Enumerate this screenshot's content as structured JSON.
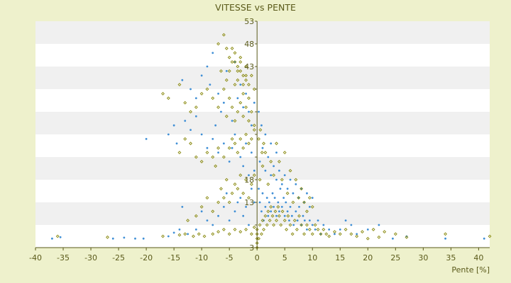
{
  "chart_data": {
    "type": "scatter",
    "title": "VITESSE vs PENTE",
    "xlabel": "Pente [%]",
    "ylabel": "",
    "xlim": [
      -40,
      42
    ],
    "ylim": [
      3,
      53
    ],
    "x_ticks": [
      -40,
      -35,
      -30,
      -25,
      -20,
      -15,
      -10,
      -5,
      0,
      5,
      10,
      15,
      20,
      25,
      30,
      35,
      40
    ],
    "y_ticks": [
      3,
      8,
      13,
      18,
      23,
      28,
      33,
      38,
      43,
      48,
      53
    ],
    "y_tick_labels_visible": [
      "53",
      "48",
      "43",
      "18",
      "13",
      "3"
    ],
    "grid": "horizontal bands",
    "legend": "none",
    "colors": {
      "background": "#eef1cc",
      "plot_band_light": "#ffffff",
      "plot_band_dark": "#f0f0f0",
      "axis": "#5a5a1a",
      "series_1": "#3f8fd6",
      "series_2": "#8a8a10"
    },
    "series": [
      {
        "color": "#3f8fd6",
        "marker": "dot",
        "points": [
          [
            -37,
            5
          ],
          [
            -35.5,
            5.3
          ],
          [
            -26,
            5
          ],
          [
            -24,
            5.2
          ],
          [
            -22,
            5
          ],
          [
            -20.5,
            5
          ],
          [
            -16,
            5.5
          ],
          [
            -15,
            6.3
          ],
          [
            -14,
            7
          ],
          [
            -13.5,
            12
          ],
          [
            -12.5,
            6
          ],
          [
            -11,
            7
          ],
          [
            -10,
            11
          ],
          [
            -9,
            9
          ],
          [
            -8,
            8
          ],
          [
            -7,
            10
          ],
          [
            -6,
            12
          ],
          [
            -5.5,
            15
          ],
          [
            -5,
            9
          ],
          [
            -4,
            11
          ],
          [
            -3.5,
            13
          ],
          [
            -3,
            14
          ],
          [
            -2.5,
            10
          ],
          [
            -2,
            12
          ],
          [
            -1.5,
            8
          ],
          [
            -1,
            16
          ],
          [
            -0.5,
            13
          ],
          [
            -20,
            27
          ],
          [
            -16,
            28
          ],
          [
            -15,
            30
          ],
          [
            -14.5,
            26
          ],
          [
            -13,
            31
          ],
          [
            -12,
            29
          ],
          [
            -11,
            32
          ],
          [
            -10,
            28
          ],
          [
            -9,
            25
          ],
          [
            -8,
            27
          ],
          [
            -7.5,
            30
          ],
          [
            -7,
            24
          ],
          [
            -6,
            26
          ],
          [
            -5,
            22
          ],
          [
            -4.5,
            25
          ],
          [
            -4,
            28
          ],
          [
            -3,
            23
          ],
          [
            -2.5,
            21
          ],
          [
            -2,
            26
          ],
          [
            -1.5,
            19
          ],
          [
            -1,
            24
          ],
          [
            -0.5,
            20
          ],
          [
            -13.5,
            40
          ],
          [
            -12,
            38
          ],
          [
            -11,
            36
          ],
          [
            -10,
            41
          ],
          [
            -8,
            46
          ],
          [
            -7,
            37
          ],
          [
            -6,
            35
          ],
          [
            -5.5,
            42
          ],
          [
            -4,
            44
          ],
          [
            -3,
            39
          ],
          [
            -2.5,
            34
          ],
          [
            -2,
            37
          ],
          [
            -1.5,
            33
          ],
          [
            -1,
            30
          ],
          [
            -0.5,
            35
          ],
          [
            -9,
            43
          ],
          [
            -8.5,
            39
          ],
          [
            -6.5,
            33
          ],
          [
            -4.5,
            31
          ],
          [
            -3.5,
            36
          ],
          [
            0.3,
            16
          ],
          [
            0.5,
            13
          ],
          [
            0.8,
            11
          ],
          [
            1,
            15
          ],
          [
            1.2,
            9
          ],
          [
            1.5,
            12
          ],
          [
            1.8,
            14
          ],
          [
            2,
            10
          ],
          [
            2.2,
            13
          ],
          [
            2.5,
            11
          ],
          [
            2.8,
            15
          ],
          [
            3,
            12
          ],
          [
            3.2,
            14
          ],
          [
            3.5,
            10
          ],
          [
            3.8,
            13
          ],
          [
            4,
            11
          ],
          [
            4.2,
            16
          ],
          [
            4.5,
            12
          ],
          [
            4.8,
            14
          ],
          [
            5,
            10
          ],
          [
            5.2,
            13
          ],
          [
            5.5,
            11
          ],
          [
            5.8,
            9
          ],
          [
            6,
            12
          ],
          [
            6.3,
            10
          ],
          [
            6.6,
            8
          ],
          [
            7,
            11
          ],
          [
            7.3,
            9
          ],
          [
            7.6,
            12
          ],
          [
            8,
            8
          ],
          [
            8.3,
            10
          ],
          [
            8.6,
            9
          ],
          [
            9,
            7
          ],
          [
            9.5,
            9
          ],
          [
            10,
            8
          ],
          [
            10.5,
            7
          ],
          [
            11,
            9
          ],
          [
            11.5,
            6
          ],
          [
            12,
            8
          ],
          [
            13,
            7
          ],
          [
            14,
            6
          ],
          [
            15,
            7
          ],
          [
            16,
            9
          ],
          [
            17,
            8
          ],
          [
            18,
            6
          ],
          [
            20,
            7
          ],
          [
            22,
            8
          ],
          [
            24.5,
            5
          ],
          [
            27,
            5.5
          ],
          [
            34,
            5
          ],
          [
            41,
            5
          ],
          [
            0.5,
            22
          ],
          [
            1,
            25
          ],
          [
            1.5,
            20
          ],
          [
            2,
            23
          ],
          [
            2.5,
            19
          ],
          [
            3,
            21
          ],
          [
            3.5,
            18
          ],
          [
            4,
            20
          ],
          [
            4.5,
            17
          ],
          [
            5,
            19
          ],
          [
            5.5,
            16
          ],
          [
            6,
            18
          ],
          [
            6.5,
            15
          ],
          [
            7,
            17
          ],
          [
            7.5,
            14
          ],
          [
            8,
            16
          ],
          [
            8.5,
            13
          ],
          [
            9,
            15
          ],
          [
            9.5,
            12
          ],
          [
            10,
            14
          ],
          [
            0.8,
            30
          ],
          [
            1.5,
            28
          ],
          [
            2.5,
            26
          ],
          [
            3.5,
            24
          ],
          [
            0.3,
            33
          ]
        ]
      },
      {
        "color": "#8a8a10",
        "marker": "diamond",
        "points": [
          [
            -36,
            5.5
          ],
          [
            -27,
            5.3
          ],
          [
            -17,
            5.5
          ],
          [
            -14,
            5.8
          ],
          [
            -13,
            6
          ],
          [
            -11.5,
            5.5
          ],
          [
            -10.5,
            6
          ],
          [
            -9.5,
            5.5
          ],
          [
            -8,
            6
          ],
          [
            -7,
            6.5
          ],
          [
            -6,
            7
          ],
          [
            -5,
            6
          ],
          [
            -4,
            7
          ],
          [
            -3,
            6.5
          ],
          [
            -2,
            7
          ],
          [
            -1,
            6
          ],
          [
            -0.5,
            7.5
          ],
          [
            -12.5,
            9
          ],
          [
            -11,
            10
          ],
          [
            -10,
            12
          ],
          [
            -9,
            14
          ],
          [
            -8,
            11
          ],
          [
            -7,
            13
          ],
          [
            -6.5,
            16
          ],
          [
            -6,
            14
          ],
          [
            -5.5,
            18
          ],
          [
            -5,
            13
          ],
          [
            -4.5,
            15
          ],
          [
            -4,
            17
          ],
          [
            -3.5,
            16
          ],
          [
            -3,
            19
          ],
          [
            -2.5,
            15
          ],
          [
            -2,
            18
          ],
          [
            -1.5,
            14
          ],
          [
            -1,
            17
          ],
          [
            -0.5,
            19
          ],
          [
            -14,
            24
          ],
          [
            -13,
            27
          ],
          [
            -12,
            26
          ],
          [
            -11,
            23
          ],
          [
            -10,
            22
          ],
          [
            -9,
            24
          ],
          [
            -8,
            23
          ],
          [
            -7.5,
            21
          ],
          [
            -7,
            25
          ],
          [
            -6,
            23
          ],
          [
            -5,
            25
          ],
          [
            -4.5,
            27
          ],
          [
            -4,
            26
          ],
          [
            -3.5,
            24
          ],
          [
            -3,
            27
          ],
          [
            -2.5,
            25
          ],
          [
            -2,
            28
          ],
          [
            -1.5,
            26
          ],
          [
            -1,
            27
          ],
          [
            -0.5,
            29
          ],
          [
            -17,
            37
          ],
          [
            -16,
            36
          ],
          [
            -14,
            39
          ],
          [
            -13,
            35
          ],
          [
            -12,
            33
          ],
          [
            -11,
            34
          ],
          [
            -10,
            37
          ],
          [
            -9,
            38
          ],
          [
            -8,
            36
          ],
          [
            -7,
            34
          ],
          [
            -6,
            38
          ],
          [
            -5.5,
            40
          ],
          [
            -5,
            42
          ],
          [
            -4.5,
            44
          ],
          [
            -4,
            46
          ],
          [
            -3.5,
            43
          ],
          [
            -3,
            45
          ],
          [
            -2.5,
            41
          ],
          [
            -2,
            43
          ],
          [
            -1.5,
            39
          ],
          [
            -1,
            41
          ],
          [
            -0.5,
            38
          ],
          [
            -6.5,
            42
          ],
          [
            -5,
            36
          ],
          [
            -4,
            39
          ],
          [
            -3.5,
            40
          ],
          [
            -3,
            42
          ],
          [
            -2.5,
            37
          ],
          [
            -2,
            40
          ],
          [
            -1.5,
            36
          ],
          [
            -7,
            48
          ],
          [
            -6,
            50
          ],
          [
            -5.5,
            47
          ],
          [
            -5,
            45
          ],
          [
            -4.5,
            47
          ],
          [
            -4,
            44
          ],
          [
            -3.5,
            42
          ],
          [
            -3,
            44
          ],
          [
            -2.5,
            39
          ],
          [
            -2,
            41
          ],
          [
            -4,
            31
          ],
          [
            -3.5,
            33
          ],
          [
            -3,
            35
          ],
          [
            -2.5,
            32
          ],
          [
            -2,
            34
          ],
          [
            -1.5,
            31
          ],
          [
            -1,
            33
          ],
          [
            -0.5,
            30
          ],
          [
            -4.5,
            34
          ],
          [
            -5.5,
            32
          ],
          [
            0,
            3
          ],
          [
            0,
            4
          ],
          [
            0,
            5
          ],
          [
            0,
            6
          ],
          [
            0,
            7
          ],
          [
            0.3,
            5
          ],
          [
            0.5,
            8
          ],
          [
            0.8,
            6
          ],
          [
            1,
            9
          ],
          [
            1.2,
            7
          ],
          [
            1.5,
            10
          ],
          [
            1.8,
            8
          ],
          [
            2,
            11
          ],
          [
            2.3,
            9
          ],
          [
            2.5,
            12
          ],
          [
            2.8,
            10
          ],
          [
            3,
            8
          ],
          [
            3.3,
            11
          ],
          [
            3.5,
            9
          ],
          [
            3.8,
            12
          ],
          [
            4,
            10
          ],
          [
            4.3,
            8
          ],
          [
            4.6,
            11
          ],
          [
            5,
            9
          ],
          [
            5.3,
            7
          ],
          [
            5.6,
            10
          ],
          [
            6,
            8
          ],
          [
            6.4,
            6
          ],
          [
            6.8,
            9
          ],
          [
            7.2,
            7
          ],
          [
            7.6,
            10
          ],
          [
            8,
            8
          ],
          [
            8.5,
            6
          ],
          [
            9,
            8
          ],
          [
            9.5,
            7
          ],
          [
            10,
            6
          ],
          [
            10.5,
            8
          ],
          [
            11,
            7
          ],
          [
            11.5,
            6
          ],
          [
            12,
            7
          ],
          [
            12.5,
            6
          ],
          [
            13,
            5.5
          ],
          [
            14,
            6.5
          ],
          [
            15,
            6
          ],
          [
            16,
            7
          ],
          [
            17,
            6
          ],
          [
            18,
            5.5
          ],
          [
            19,
            6.5
          ],
          [
            21,
            7
          ],
          [
            23,
            6.5
          ],
          [
            25,
            6
          ],
          [
            27,
            5.3
          ],
          [
            34,
            6
          ],
          [
            42,
            5.5
          ],
          [
            20,
            5
          ],
          [
            22,
            5.3
          ],
          [
            0.5,
            18
          ],
          [
            1,
            21
          ],
          [
            1.5,
            24
          ],
          [
            2,
            17
          ],
          [
            2.5,
            22
          ],
          [
            3,
            19
          ],
          [
            3.5,
            26
          ],
          [
            4,
            22
          ],
          [
            4.5,
            18
          ],
          [
            5,
            24
          ],
          [
            5.5,
            15
          ],
          [
            6,
            20
          ],
          [
            6.5,
            13
          ],
          [
            7,
            18
          ],
          [
            7.5,
            14
          ],
          [
            8,
            16
          ],
          [
            8.5,
            13
          ],
          [
            9,
            11
          ],
          [
            9.5,
            14
          ],
          [
            10,
            12
          ],
          [
            0.3,
            27
          ],
          [
            0.6,
            29
          ],
          [
            0.9,
            24
          ],
          [
            1.2,
            26
          ]
        ]
      }
    ]
  }
}
